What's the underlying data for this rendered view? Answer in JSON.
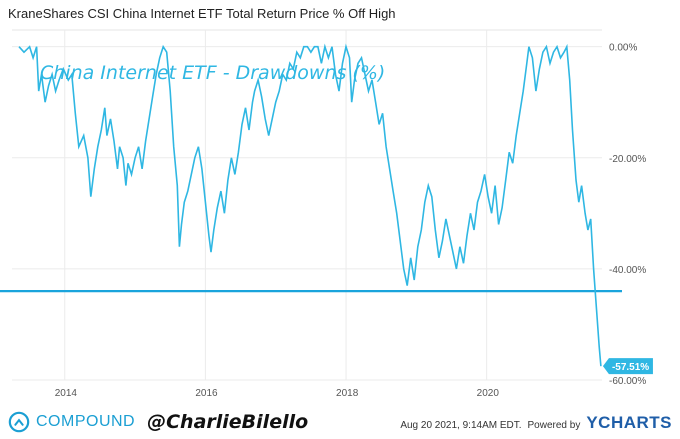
{
  "header": {
    "title": "KraneShares CSI China Internet ETF Total Return Price % Off High"
  },
  "footer": {
    "brand_name": "COMPOUND",
    "handle": "@CharlieBilello",
    "date": "Aug 20 2021, 9:14AM EDT.",
    "powered": "Powered by",
    "ycharts": "YCHARTS"
  },
  "colors": {
    "line": "#2fb7e3",
    "reference_line": "#1aa4dc",
    "label_bg": "#2fb7e3"
  },
  "chart_data": {
    "type": "line",
    "title": "China Internet ETF - Drawdowns (%)",
    "xlabel": "",
    "ylabel": "",
    "xlim": [
      2013.25,
      2021.64
    ],
    "ylim": [
      -60,
      3
    ],
    "x_ticks": [
      2014,
      2016,
      2018,
      2020
    ],
    "x_tick_labels": [
      "2014",
      "2016",
      "2018",
      "2020"
    ],
    "y_ticks": [
      0,
      -20,
      -40,
      -60
    ],
    "y_tick_labels": [
      "0.00%",
      "-20.00%",
      "-40.00%",
      "-60.00%"
    ],
    "last_value_label": "-57.51%",
    "reference_line_value": -44,
    "grid": true,
    "legend": "none",
    "series": [
      {
        "points": [
          [
            2013.35,
            0
          ],
          [
            2013.42,
            -1
          ],
          [
            2013.5,
            0
          ],
          [
            2013.55,
            -2
          ],
          [
            2013.6,
            0
          ],
          [
            2013.63,
            -8
          ],
          [
            2013.67,
            -5
          ],
          [
            2013.72,
            -10
          ],
          [
            2013.77,
            -7
          ],
          [
            2013.82,
            -5
          ],
          [
            2013.87,
            -8
          ],
          [
            2013.92,
            -6
          ],
          [
            2013.98,
            -4
          ],
          [
            2014.05,
            -6
          ],
          [
            2014.1,
            -5
          ],
          [
            2014.15,
            -12
          ],
          [
            2014.2,
            -18
          ],
          [
            2014.27,
            -16
          ],
          [
            2014.33,
            -20
          ],
          [
            2014.37,
            -27
          ],
          [
            2014.42,
            -22
          ],
          [
            2014.47,
            -18
          ],
          [
            2014.52,
            -15
          ],
          [
            2014.57,
            -11
          ],
          [
            2014.6,
            -16
          ],
          [
            2014.65,
            -13
          ],
          [
            2014.7,
            -17
          ],
          [
            2014.75,
            -22
          ],
          [
            2014.78,
            -18
          ],
          [
            2014.83,
            -20
          ],
          [
            2014.87,
            -25
          ],
          [
            2014.9,
            -21
          ],
          [
            2014.95,
            -23
          ],
          [
            2015.0,
            -20
          ],
          [
            2015.05,
            -18
          ],
          [
            2015.1,
            -22
          ],
          [
            2015.15,
            -17
          ],
          [
            2015.2,
            -13
          ],
          [
            2015.25,
            -9
          ],
          [
            2015.3,
            -5
          ],
          [
            2015.35,
            -2
          ],
          [
            2015.4,
            0
          ],
          [
            2015.45,
            -1
          ],
          [
            2015.5,
            -8
          ],
          [
            2015.55,
            -18
          ],
          [
            2015.6,
            -25
          ],
          [
            2015.63,
            -36
          ],
          [
            2015.66,
            -32
          ],
          [
            2015.7,
            -28
          ],
          [
            2015.75,
            -26
          ],
          [
            2015.8,
            -23
          ],
          [
            2015.85,
            -20
          ],
          [
            2015.9,
            -18
          ],
          [
            2015.95,
            -22
          ],
          [
            2016.0,
            -28
          ],
          [
            2016.05,
            -34
          ],
          [
            2016.08,
            -37
          ],
          [
            2016.12,
            -33
          ],
          [
            2016.17,
            -29
          ],
          [
            2016.22,
            -26
          ],
          [
            2016.27,
            -30
          ],
          [
            2016.32,
            -24
          ],
          [
            2016.37,
            -20
          ],
          [
            2016.42,
            -23
          ],
          [
            2016.47,
            -19
          ],
          [
            2016.52,
            -14
          ],
          [
            2016.57,
            -11
          ],
          [
            2016.62,
            -15
          ],
          [
            2016.67,
            -10
          ],
          [
            2016.7,
            -8
          ],
          [
            2016.75,
            -6
          ],
          [
            2016.8,
            -9
          ],
          [
            2016.85,
            -13
          ],
          [
            2016.9,
            -16
          ],
          [
            2016.95,
            -13
          ],
          [
            2017.0,
            -10
          ],
          [
            2017.05,
            -8
          ],
          [
            2017.1,
            -5
          ],
          [
            2017.15,
            -6
          ],
          [
            2017.2,
            -3
          ],
          [
            2017.25,
            -4
          ],
          [
            2017.3,
            -1
          ],
          [
            2017.35,
            -2
          ],
          [
            2017.4,
            0
          ],
          [
            2017.45,
            0
          ],
          [
            2017.5,
            -1
          ],
          [
            2017.55,
            0
          ],
          [
            2017.6,
            0
          ],
          [
            2017.65,
            -3
          ],
          [
            2017.7,
            0
          ],
          [
            2017.75,
            -2
          ],
          [
            2017.8,
            0
          ],
          [
            2017.85,
            -5
          ],
          [
            2017.9,
            -8
          ],
          [
            2017.95,
            -3
          ],
          [
            2018.0,
            0
          ],
          [
            2018.05,
            -2
          ],
          [
            2018.08,
            -10
          ],
          [
            2018.12,
            -6
          ],
          [
            2018.17,
            -3
          ],
          [
            2018.22,
            -2
          ],
          [
            2018.27,
            -5
          ],
          [
            2018.32,
            -8
          ],
          [
            2018.37,
            -6
          ],
          [
            2018.42,
            -10
          ],
          [
            2018.47,
            -14
          ],
          [
            2018.52,
            -12
          ],
          [
            2018.57,
            -18
          ],
          [
            2018.62,
            -22
          ],
          [
            2018.67,
            -26
          ],
          [
            2018.72,
            -30
          ],
          [
            2018.77,
            -35
          ],
          [
            2018.82,
            -40
          ],
          [
            2018.87,
            -43
          ],
          [
            2018.92,
            -38
          ],
          [
            2018.97,
            -42
          ],
          [
            2019.02,
            -36
          ],
          [
            2019.07,
            -33
          ],
          [
            2019.12,
            -28
          ],
          [
            2019.17,
            -25
          ],
          [
            2019.22,
            -27
          ],
          [
            2019.27,
            -33
          ],
          [
            2019.32,
            -38
          ],
          [
            2019.37,
            -35
          ],
          [
            2019.42,
            -31
          ],
          [
            2019.47,
            -34
          ],
          [
            2019.52,
            -37
          ],
          [
            2019.57,
            -40
          ],
          [
            2019.62,
            -36
          ],
          [
            2019.67,
            -39
          ],
          [
            2019.72,
            -34
          ],
          [
            2019.77,
            -30
          ],
          [
            2019.82,
            -33
          ],
          [
            2019.87,
            -28
          ],
          [
            2019.92,
            -26
          ],
          [
            2019.97,
            -23
          ],
          [
            2020.02,
            -27
          ],
          [
            2020.07,
            -30
          ],
          [
            2020.12,
            -25
          ],
          [
            2020.17,
            -32
          ],
          [
            2020.22,
            -29
          ],
          [
            2020.27,
            -24
          ],
          [
            2020.32,
            -19
          ],
          [
            2020.37,
            -21
          ],
          [
            2020.42,
            -16
          ],
          [
            2020.47,
            -12
          ],
          [
            2020.52,
            -8
          ],
          [
            2020.57,
            -3
          ],
          [
            2020.6,
            0
          ],
          [
            2020.65,
            -2
          ],
          [
            2020.7,
            -8
          ],
          [
            2020.75,
            -4
          ],
          [
            2020.8,
            -1
          ],
          [
            2020.85,
            0
          ],
          [
            2020.9,
            -3
          ],
          [
            2020.95,
            -1
          ],
          [
            2021.0,
            0
          ],
          [
            2021.05,
            -2
          ],
          [
            2021.1,
            -1
          ],
          [
            2021.14,
            0
          ],
          [
            2021.18,
            -6
          ],
          [
            2021.22,
            -15
          ],
          [
            2021.27,
            -24
          ],
          [
            2021.31,
            -28
          ],
          [
            2021.35,
            -25
          ],
          [
            2021.4,
            -30
          ],
          [
            2021.44,
            -33
          ],
          [
            2021.48,
            -31
          ],
          [
            2021.52,
            -40
          ],
          [
            2021.56,
            -47
          ],
          [
            2021.6,
            -54
          ],
          [
            2021.625,
            -57.51
          ]
        ]
      }
    ]
  }
}
